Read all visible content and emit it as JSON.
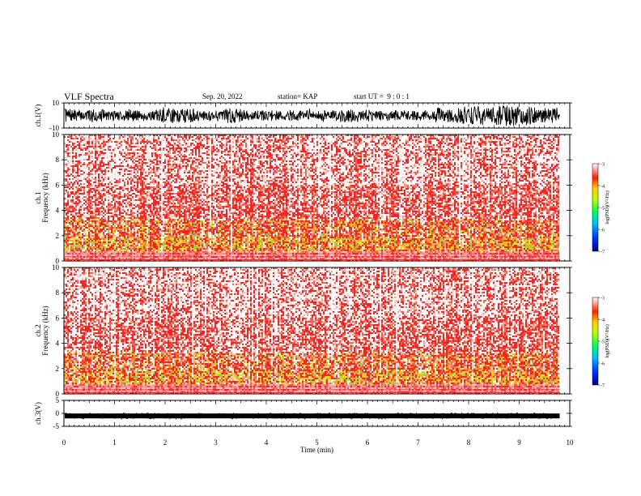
{
  "header": {
    "title": "VLF Spectra",
    "date": "Sep. 20, 2022",
    "station": "station= KAP",
    "start": "start UT =  9 : 0 : 1"
  },
  "chart_data": [
    {
      "id": "waveform-ch1",
      "type": "line",
      "ylabel": "ch.1(V)",
      "ylim": [
        -10,
        10
      ],
      "yticks": [
        "10",
        "-10"
      ],
      "x_range_min": [
        0,
        9.8
      ],
      "description_values": "dense oscillating waveform filling most of the range"
    },
    {
      "id": "spectrogram-ch1",
      "type": "heatmap",
      "ylabel": "ch.1\nFrequency (kHz)",
      "ylim": [
        0,
        10
      ],
      "yticks": [
        "0",
        "2",
        "4",
        "6",
        "8",
        "10"
      ],
      "x_range_min": [
        0,
        9.8
      ],
      "colorbar": {
        "label": "log(PSD)(V²/Hz)",
        "range": [
          -7,
          -3
        ],
        "ticks": [
          "-3",
          "-4",
          "-5",
          "-6",
          "-7"
        ]
      }
    },
    {
      "id": "spectrogram-ch2",
      "type": "heatmap",
      "ylabel": "ch.2\nFrequency (kHz)",
      "ylim": [
        0,
        10
      ],
      "yticks": [
        "0",
        "2",
        "4",
        "6",
        "8",
        "10"
      ],
      "x_range_min": [
        0,
        9.8
      ],
      "colorbar": {
        "label": "log(PSD)(V²/Hz)",
        "range": [
          -7,
          -3
        ],
        "ticks": [
          "-3",
          "-4",
          "-5",
          "-6",
          "-7"
        ]
      }
    },
    {
      "id": "waveform-ch3",
      "type": "line",
      "ylabel": "ch.3(V)",
      "ylim": [
        -5,
        5
      ],
      "yticks": [
        "5",
        "0",
        "-5"
      ],
      "x_range_min": [
        0,
        9.8
      ],
      "level_v": -1.0
    }
  ],
  "xaxis": {
    "label": "Time (min)",
    "range": [
      0,
      10
    ],
    "ticks": [
      "0",
      "1",
      "2",
      "3",
      "4",
      "5",
      "6",
      "7",
      "8",
      "9",
      "10"
    ]
  }
}
